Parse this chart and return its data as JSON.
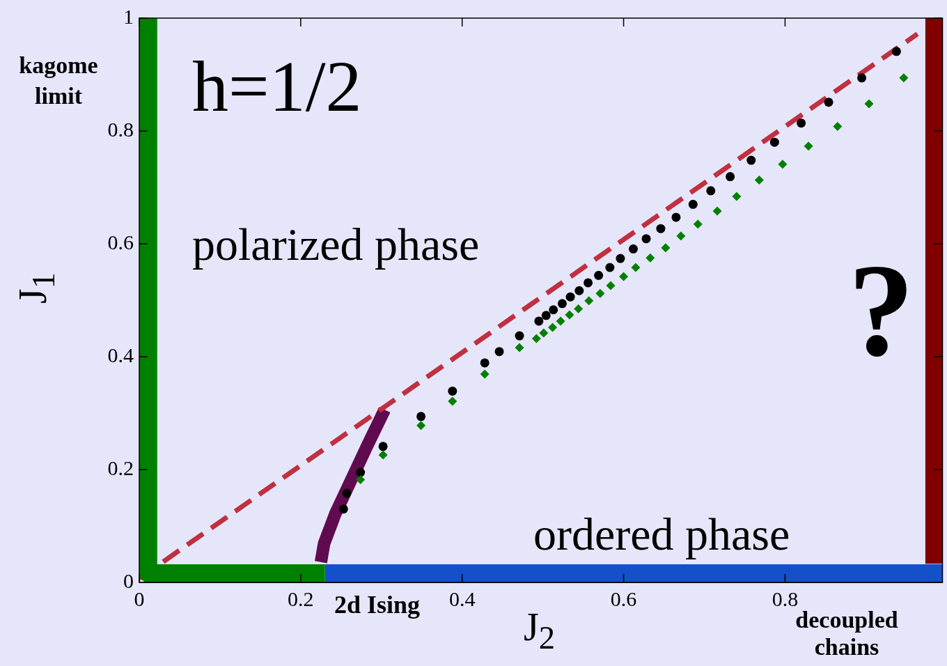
{
  "chart_data": {
    "type": "scatter",
    "xlabel": "J$_{2}$",
    "ylabel": "J$_{1}$",
    "xlim": [
      0,
      0.995
    ],
    "ylim": [
      0,
      1
    ],
    "xticks": [
      0,
      0.2,
      0.4,
      0.6,
      0.8
    ],
    "yticks": [
      0,
      0.2,
      0.4,
      0.6,
      0.8,
      1
    ],
    "annotations": [
      "h=1/2",
      "polarized phase",
      "ordered phase",
      "?",
      "kagome limit",
      "2d Ising",
      "decoupled chains"
    ],
    "series": [
      {
        "type": "line",
        "color": "#008000",
        "marker": "none",
        "line_style": "solid",
        "x": [
          0.011,
          0.011,
          0.23
        ],
        "values": [
          1,
          0.016,
          0.016
        ]
      },
      {
        "type": "line",
        "color": "#1450c8",
        "marker": "none",
        "line_style": "solid",
        "x": [
          0.23,
          0.995
        ],
        "values": [
          0.016,
          0.016
        ]
      },
      {
        "type": "line",
        "color": "#800000",
        "marker": "none",
        "line_style": "solid",
        "x": [
          0.985,
          0.985
        ],
        "values": [
          0.033,
          1
        ]
      },
      {
        "type": "line",
        "color": "#c03040",
        "marker": "none",
        "line_style": "dashed",
        "x": [
          0,
          0.964
        ],
        "values": [
          0.007,
          0.972
        ]
      },
      {
        "type": "scatter",
        "color": "#008000",
        "marker": "diamond",
        "x": [
          0.947,
          0.904,
          0.865,
          0.829,
          0.797,
          0.768,
          0.74,
          0.716,
          0.692,
          0.671,
          0.652,
          0.633,
          0.615,
          0.6,
          0.584,
          0.571,
          0.557,
          0.544,
          0.533,
          0.522,
          0.512,
          0.501,
          0.492,
          0.471,
          0.428,
          0.388,
          0.349,
          0.302,
          0.274
        ],
        "values": [
          0.894,
          0.848,
          0.808,
          0.773,
          0.741,
          0.713,
          0.684,
          0.658,
          0.635,
          0.614,
          0.593,
          0.575,
          0.558,
          0.542,
          0.526,
          0.512,
          0.499,
          0.485,
          0.474,
          0.463,
          0.452,
          0.442,
          0.432,
          0.416,
          0.369,
          0.321,
          0.278,
          0.226,
          0.182
        ]
      },
      {
        "type": "scatter",
        "color": "#000000",
        "marker": "circle",
        "x": [
          0.938,
          0.895,
          0.854,
          0.82,
          0.787,
          0.758,
          0.732,
          0.708,
          0.686,
          0.665,
          0.646,
          0.628,
          0.612,
          0.596,
          0.583,
          0.569,
          0.556,
          0.545,
          0.534,
          0.524,
          0.513,
          0.504,
          0.495,
          0.471,
          0.446,
          0.428,
          0.388,
          0.349,
          0.302,
          0.274,
          0.257,
          0.253
        ],
        "values": [
          0.941,
          0.894,
          0.851,
          0.814,
          0.78,
          0.748,
          0.719,
          0.694,
          0.67,
          0.647,
          0.627,
          0.609,
          0.591,
          0.574,
          0.558,
          0.544,
          0.531,
          0.517,
          0.506,
          0.494,
          0.483,
          0.473,
          0.463,
          0.437,
          0.409,
          0.389,
          0.339,
          0.294,
          0.241,
          0.195,
          0.158,
          0.13
        ]
      },
      {
        "type": "line",
        "color": "#600a50",
        "marker": "none",
        "line_style": "solid",
        "x": [
          0.304,
          0.283,
          0.263,
          0.243,
          0.229,
          0.225
        ],
        "values": [
          0.306,
          0.244,
          0.183,
          0.122,
          0.069,
          0.036
        ]
      }
    ]
  }
}
